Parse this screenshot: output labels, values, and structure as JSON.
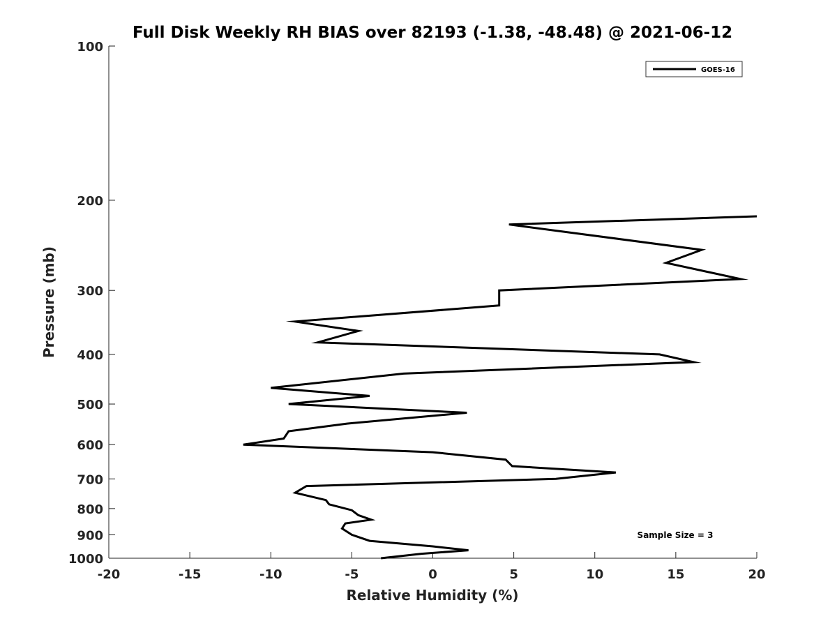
{
  "chart_data": {
    "type": "line",
    "title": "Full Disk Weekly RH BIAS over 82193 (-1.38, -48.48) @ 2021-06-12",
    "xlabel": "Relative Humidity (%)",
    "ylabel": "Pressure (mb)",
    "xlim": [
      -20,
      20
    ],
    "ylim": [
      1000,
      100
    ],
    "y_scale": "log",
    "y_inverted": true,
    "x_ticks": [
      "-20",
      "-15",
      "-10",
      "-5",
      "0",
      "5",
      "10",
      "15",
      "20"
    ],
    "y_ticks": [
      "100",
      "200",
      "300",
      "400",
      "500",
      "600",
      "700",
      "800",
      "900",
      "1000"
    ],
    "grid": false,
    "legend_position": "top-right",
    "series": [
      {
        "name": "GOES-16",
        "color": "#000000",
        "points": [
          {
            "x": 20.0,
            "y": 215
          },
          {
            "x": 4.7,
            "y": 223
          },
          {
            "x": 16.6,
            "y": 250
          },
          {
            "x": 14.4,
            "y": 265
          },
          {
            "x": 19.0,
            "y": 285
          },
          {
            "x": 4.1,
            "y": 300
          },
          {
            "x": 4.1,
            "y": 321
          },
          {
            "x": -8.5,
            "y": 345
          },
          {
            "x": -4.6,
            "y": 360
          },
          {
            "x": -7.1,
            "y": 379
          },
          {
            "x": 14.0,
            "y": 400
          },
          {
            "x": 16.1,
            "y": 414
          },
          {
            "x": -1.8,
            "y": 436
          },
          {
            "x": -10.0,
            "y": 465
          },
          {
            "x": -3.9,
            "y": 482
          },
          {
            "x": -8.9,
            "y": 500
          },
          {
            "x": 2.1,
            "y": 520
          },
          {
            "x": -5.3,
            "y": 546
          },
          {
            "x": -8.9,
            "y": 565
          },
          {
            "x": -9.2,
            "y": 584
          },
          {
            "x": -11.7,
            "y": 600
          },
          {
            "x": 0.0,
            "y": 621
          },
          {
            "x": 4.5,
            "y": 642
          },
          {
            "x": 4.9,
            "y": 661
          },
          {
            "x": 11.3,
            "y": 680
          },
          {
            "x": 7.6,
            "y": 700
          },
          {
            "x": -7.8,
            "y": 723
          },
          {
            "x": -8.5,
            "y": 745
          },
          {
            "x": -6.6,
            "y": 770
          },
          {
            "x": -6.4,
            "y": 785
          },
          {
            "x": -5.0,
            "y": 806
          },
          {
            "x": -4.6,
            "y": 824
          },
          {
            "x": -3.8,
            "y": 841
          },
          {
            "x": -5.4,
            "y": 855
          },
          {
            "x": -5.6,
            "y": 875
          },
          {
            "x": -5.0,
            "y": 900
          },
          {
            "x": -3.9,
            "y": 925
          },
          {
            "x": 0.0,
            "y": 948
          },
          {
            "x": 2.2,
            "y": 965
          },
          {
            "x": -0.7,
            "y": 980
          },
          {
            "x": -3.2,
            "y": 1000
          }
        ]
      }
    ],
    "annotations": [
      "Sample Size = 3"
    ]
  }
}
